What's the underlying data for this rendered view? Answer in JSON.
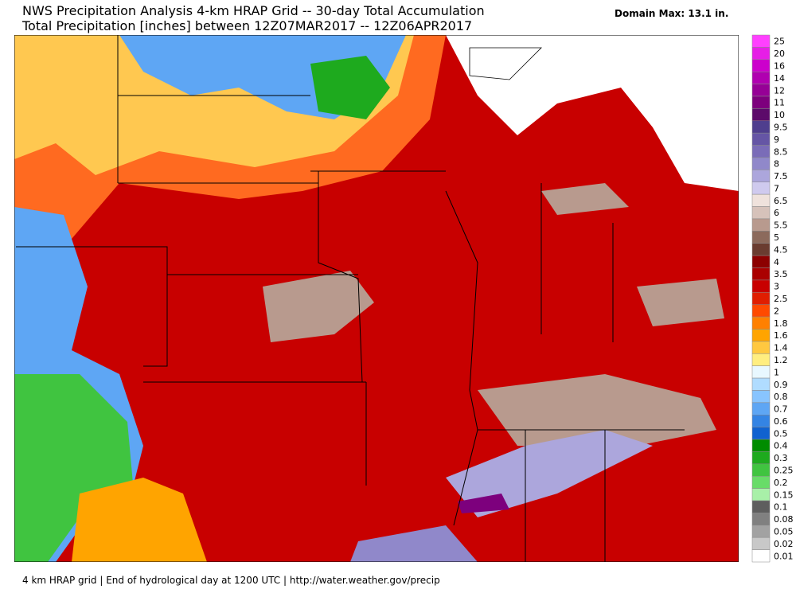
{
  "header": {
    "title": "NWS Precipitation Analysis 4-km HRAP Grid -- 30-day Total Accumulation",
    "subtitle": "Total Precipitation [inches] between 12Z07MAR2017 -- 12Z06APR2017",
    "domain_max": "Domain Max: 13.1 in."
  },
  "legend": {
    "items": [
      {
        "label": "25",
        "color": "#ff40ff"
      },
      {
        "label": "20",
        "color": "#e61ee6"
      },
      {
        "label": "16",
        "color": "#cc00cc"
      },
      {
        "label": "14",
        "color": "#b000b0"
      },
      {
        "label": "12",
        "color": "#960096"
      },
      {
        "label": "11",
        "color": "#7d007d"
      },
      {
        "label": "10",
        "color": "#5c0a6a"
      },
      {
        "label": "9.5",
        "color": "#4f3e8e"
      },
      {
        "label": "9",
        "color": "#6555a5"
      },
      {
        "label": "8.5",
        "color": "#7a6cb8"
      },
      {
        "label": "8",
        "color": "#9088ca"
      },
      {
        "label": "7.5",
        "color": "#aca6dc"
      },
      {
        "label": "7",
        "color": "#cfcaee"
      },
      {
        "label": "6.5",
        "color": "#efe2dc"
      },
      {
        "label": "6",
        "color": "#d6c2ba"
      },
      {
        "label": "5.5",
        "color": "#b89a8e"
      },
      {
        "label": "5",
        "color": "#8c6a5c"
      },
      {
        "label": "4.5",
        "color": "#6a3c30"
      },
      {
        "label": "4",
        "color": "#8c0000"
      },
      {
        "label": "3.5",
        "color": "#aa0000"
      },
      {
        "label": "3",
        "color": "#c80000"
      },
      {
        "label": "2.5",
        "color": "#e01e00"
      },
      {
        "label": "2",
        "color": "#ff4a00"
      },
      {
        "label": "1.8",
        "color": "#ff8000"
      },
      {
        "label": "1.6",
        "color": "#ffa400"
      },
      {
        "label": "1.4",
        "color": "#ffc840"
      },
      {
        "label": "1.2",
        "color": "#ffee80"
      },
      {
        "label": "1",
        "color": "#e8f8ff"
      },
      {
        "label": "0.9",
        "color": "#b0dcff"
      },
      {
        "label": "0.8",
        "color": "#88c4ff"
      },
      {
        "label": "0.7",
        "color": "#5ea6f4"
      },
      {
        "label": "0.6",
        "color": "#3484e4"
      },
      {
        "label": "0.5",
        "color": "#1062d0"
      },
      {
        "label": "0.4",
        "color": "#008c00"
      },
      {
        "label": "0.3",
        "color": "#1eaa1e"
      },
      {
        "label": "0.25",
        "color": "#40c440"
      },
      {
        "label": "0.2",
        "color": "#68dc68"
      },
      {
        "label": "0.15",
        "color": "#a8f0a8"
      },
      {
        "label": "0.1",
        "color": "#5e5e5e"
      },
      {
        "label": "0.08",
        "color": "#808080"
      },
      {
        "label": "0.05",
        "color": "#a2a2a2"
      },
      {
        "label": "0.02",
        "color": "#c8c8c8"
      },
      {
        "label": "0.01",
        "color": "#ffffff"
      }
    ]
  },
  "footer": {
    "text": "4 km HRAP grid | End of hydrological day at 1200 UTC | http://water.weather.gov/precip"
  }
}
